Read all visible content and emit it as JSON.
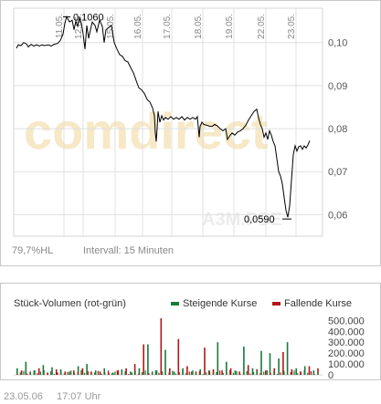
{
  "price_chart": {
    "change_label": "79,7%HL",
    "interval_label": "Intervall: 15 Minuten",
    "watermark_text": "comdirect",
    "symbol_watermark": "A3M.PSE",
    "y_ticks": [
      "0,10",
      "0,09",
      "0,08",
      "0,07",
      "0,06"
    ],
    "x_ticks": [
      "11.05.",
      "12.05.",
      "15.05.",
      "16.05.",
      "17.05.",
      "18.05.",
      "19.05.",
      "22.05.",
      "23.05."
    ],
    "high_label": "0,1060",
    "low_label": "0,0590"
  },
  "volume_chart": {
    "title": "Stück-Volumen (rot-grün)",
    "legend_up": "Steigende Kurse",
    "legend_down": "Fallende Kurse",
    "y_ticks": [
      "500.000",
      "400.000",
      "300.000",
      "200.000",
      "100.000",
      "0"
    ]
  },
  "footer": {
    "date": "23.05.06",
    "time": "17:07 Uhr"
  },
  "colors": {
    "up": "#1a7a3a",
    "down": "#b01818",
    "line": "#000000",
    "grid": "#e0e0e0",
    "watermark": "#f7e8c6"
  },
  "chart_data": [
    {
      "type": "line",
      "x": [
        "11.05.",
        "12.05.",
        "15.05.",
        "16.05.",
        "17.05.",
        "18.05.",
        "19.05.",
        "22.05.",
        "23.05."
      ],
      "series": [
        {
          "values": [
            0.0985,
            0.105,
            0.097,
            0.084,
            0.081,
            0.078,
            0.079,
            0.078,
            0.076
          ]
        }
      ],
      "ylim": [
        0.055,
        0.108
      ],
      "annotations": [
        {
          "label": "0,1060",
          "value": 0.106,
          "at": "12.05."
        },
        {
          "label": "0,0590",
          "value": 0.059,
          "at": "23.05."
        }
      ],
      "grid": true
    },
    {
      "type": "bar",
      "title": "Stück-Volumen (rot-grün)",
      "ylim": [
        0,
        520000
      ],
      "series": [
        {
          "name": "Steigende Kurse",
          "values": [
            60000,
            120000,
            40000,
            90000,
            70000,
            50000,
            30000,
            80000,
            100000,
            40000,
            60000,
            20000,
            50000,
            30000,
            60000,
            280000,
            40000,
            230000,
            30000,
            60000,
            30000,
            50000,
            40000,
            300000,
            120000,
            40000,
            260000,
            60000,
            220000,
            200000,
            150000,
            300000,
            60000,
            80000,
            40000
          ]
        },
        {
          "name": "Fallende Kurse",
          "values": [
            40000,
            30000,
            60000,
            20000,
            50000,
            30000,
            40000,
            60000,
            30000,
            30000,
            20000,
            40000,
            60000,
            100000,
            280000,
            30000,
            520000,
            60000,
            330000,
            80000,
            30000,
            250000,
            50000,
            40000,
            60000,
            30000,
            90000,
            50000,
            40000,
            60000,
            210000,
            50000,
            30000,
            80000,
            60000
          ]
        }
      ]
    }
  ]
}
